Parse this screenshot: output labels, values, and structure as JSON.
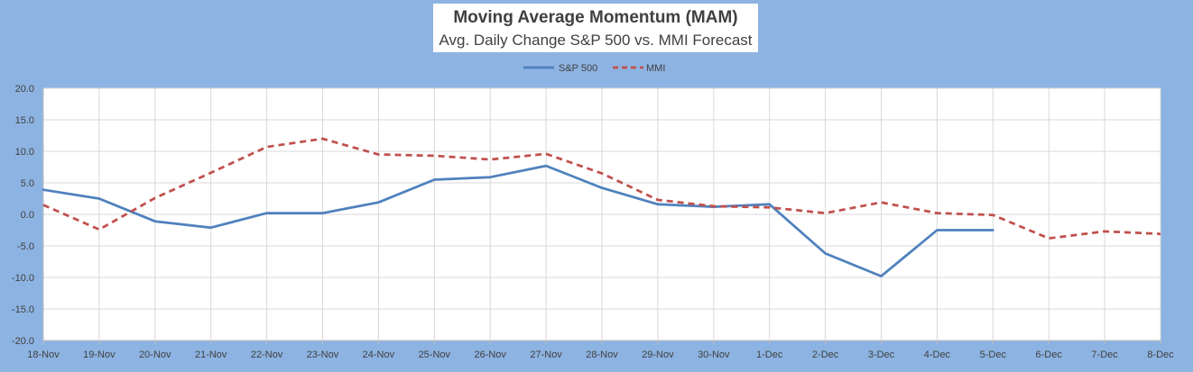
{
  "chart_data": {
    "type": "line",
    "title": "Moving Average Momentum (MAM)",
    "subtitle": "Avg. Daily Change S&P 500 vs. MMI Forecast",
    "xlabel": "",
    "ylabel": "",
    "ylim": [
      -20,
      20
    ],
    "y_ticks": [
      "20.0",
      "15.0",
      "10.0",
      "5.0",
      "0.0",
      "-5.0",
      "-10.0",
      "-15.0",
      "-20.0"
    ],
    "y_tick_values": [
      20,
      15,
      10,
      5,
      0,
      -5,
      -10,
      -15,
      -20
    ],
    "categories": [
      "18-Nov",
      "19-Nov",
      "20-Nov",
      "21-Nov",
      "22-Nov",
      "23-Nov",
      "24-Nov",
      "25-Nov",
      "26-Nov",
      "27-Nov",
      "28-Nov",
      "29-Nov",
      "30-Nov",
      "1-Dec",
      "2-Dec",
      "3-Dec",
      "4-Dec",
      "5-Dec",
      "6-Dec",
      "7-Dec",
      "8-Dec"
    ],
    "grid": true,
    "legend_position": "top-center",
    "series": [
      {
        "name": "S&P 500",
        "color": "#4f81bd",
        "style": "solid",
        "values": [
          3.9,
          2.5,
          -1.1,
          -2.1,
          0.2,
          0.2,
          1.9,
          5.5,
          5.9,
          7.7,
          4.2,
          1.6,
          1.2,
          1.6,
          -6.2,
          -9.8,
          -2.5,
          -2.5,
          null,
          null,
          null
        ]
      },
      {
        "name": "MMI",
        "color": "#c0504d",
        "style": "dashed",
        "values": [
          1.5,
          -2.4,
          2.6,
          6.6,
          10.7,
          12.0,
          9.5,
          9.3,
          8.7,
          9.6,
          6.5,
          2.3,
          1.3,
          1.1,
          0.2,
          1.9,
          0.2,
          -0.1,
          -3.8,
          -2.7,
          -3.1
        ]
      }
    ]
  }
}
